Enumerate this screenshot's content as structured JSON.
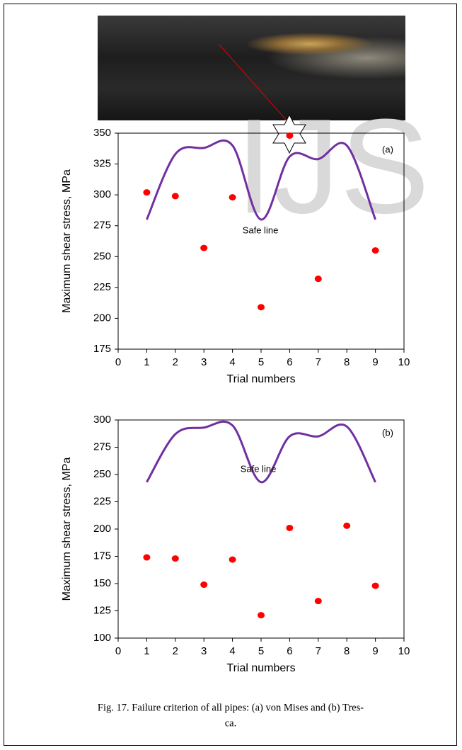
{
  "watermark": "IJS",
  "chart_data": [
    {
      "type": "line",
      "label": "(a)",
      "xlabel": "Trial numbers",
      "ylabel": "Maximum shear stress, MPa",
      "x": [
        1,
        2,
        3,
        4,
        5,
        6,
        7,
        8,
        9
      ],
      "series": [
        {
          "name": "Safe line",
          "kind": "line",
          "color": "#7030a0",
          "values": [
            280,
            333,
            338,
            340,
            280,
            331,
            329,
            340,
            280
          ]
        },
        {
          "kind": "scatter",
          "color": "#ff0000",
          "values": [
            302,
            299,
            257,
            298,
            209,
            348,
            232,
            null,
            255
          ]
        }
      ],
      "xlim": [
        0,
        10
      ],
      "xticks": [
        0,
        1,
        2,
        3,
        4,
        5,
        6,
        7,
        8,
        9,
        10
      ],
      "ylim": [
        175,
        350
      ],
      "yticks": [
        175,
        200,
        225,
        250,
        275,
        300,
        325,
        350
      ]
    },
    {
      "type": "line",
      "label": "(b)",
      "xlabel": "Trial numbers",
      "ylabel": "Maximum shear stress, MPa",
      "x": [
        1,
        2,
        3,
        4,
        5,
        6,
        7,
        8,
        9
      ],
      "series": [
        {
          "name": "Safe line",
          "kind": "line",
          "color": "#7030a0",
          "values": [
            243,
            287,
            293,
            295,
            243,
            285,
            285,
            294,
            243
          ]
        },
        {
          "kind": "scatter",
          "color": "#ff0000",
          "values": [
            174,
            173,
            149,
            172,
            121,
            201,
            134,
            203,
            148
          ]
        }
      ],
      "xlim": [
        0,
        10
      ],
      "xticks": [
        0,
        1,
        2,
        3,
        4,
        5,
        6,
        7,
        8,
        9,
        10
      ],
      "ylim": [
        100,
        300
      ],
      "yticks": [
        100,
        125,
        150,
        175,
        200,
        225,
        250,
        275,
        300
      ]
    }
  ],
  "caption": [
    "Fig. 17. Failure criterion of all pipes: (a) von Mises and (b) Tres-",
    "ca."
  ]
}
